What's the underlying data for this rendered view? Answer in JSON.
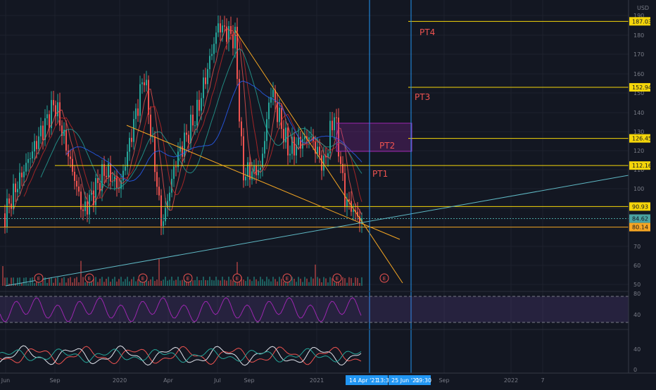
{
  "chart_data": {
    "type": "candlestick",
    "currency": "USD",
    "y_axis_ticks": [
      "190",
      "180",
      "170",
      "160",
      "150",
      "140",
      "130",
      "120",
      "110",
      "100",
      "90",
      "70",
      "60",
      "50"
    ],
    "x_axis_ticks": [
      "Jun",
      "Sep",
      "2020",
      "Apr",
      "Jul",
      "Sep",
      "2021",
      "Sep",
      "2022",
      "7"
    ],
    "price_levels": [
      {
        "label": "187.03",
        "value": 187.03,
        "color": "#f5d60a"
      },
      {
        "label": "152.94",
        "value": 152.94,
        "color": "#f5d60a"
      },
      {
        "label": "126.45",
        "value": 126.45,
        "color": "#f5d60a"
      },
      {
        "label": "112.16",
        "value": 112.16,
        "color": "#f5d60a"
      },
      {
        "label": "90.93",
        "value": 90.93,
        "color": "#f5d60a"
      },
      {
        "label": "84.62",
        "value": 84.62,
        "color": "#4aa3a2"
      },
      {
        "label": "80.14",
        "value": 80.14,
        "color": "#f5a623"
      }
    ],
    "price_targets": [
      "PT4",
      "PT3",
      "PT2",
      "PT1"
    ],
    "earnings_marker": "E",
    "rsi_ticks": [
      "80",
      "40"
    ],
    "osc_ticks": [
      "40",
      "0"
    ],
    "date_badges": [
      "14 Apr '21",
      "13:3",
      "25 Jun '21",
      "09:30"
    ],
    "colors": {
      "background": "#131722",
      "bull": "#26a69a",
      "bear": "#ef5350",
      "level": "#f5d60a",
      "trendline": "#f5a623",
      "support": "#5fb8c4",
      "rsi": "#9c27b0",
      "crosshair": "#2196f3"
    }
  }
}
